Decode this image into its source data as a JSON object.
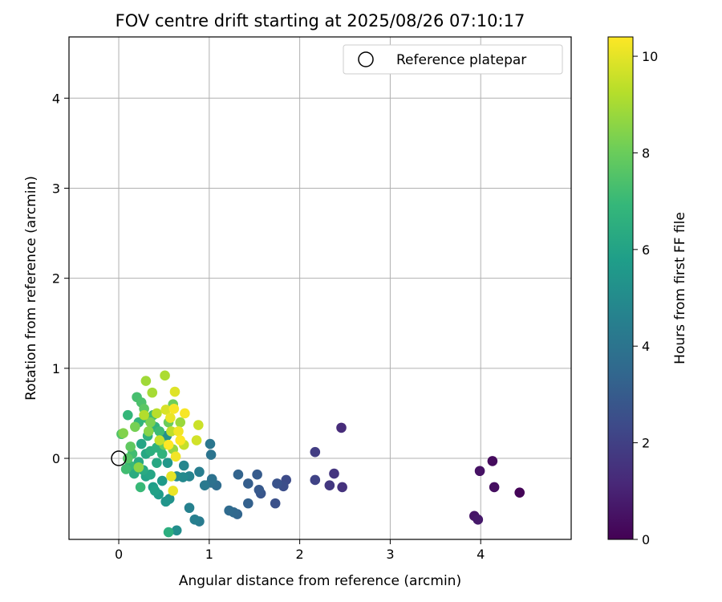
{
  "chart_data": {
    "type": "scatter",
    "title": "FOV centre drift starting at 2025/08/26 07:10:17",
    "xlabel": "Angular distance from reference (arcmin)",
    "ylabel": "Rotation from reference (arcmin)",
    "xlim": [
      -0.55,
      5.0
    ],
    "ylim": [
      -0.9,
      4.68
    ],
    "xticks": [
      0,
      1,
      2,
      3,
      4
    ],
    "yticks": [
      0,
      1,
      2,
      3,
      4
    ],
    "grid": true,
    "legend": {
      "placement": "top-right",
      "entries": [
        "Reference platepar"
      ]
    },
    "reference_point": {
      "x": 0,
      "y": 0,
      "label": "Reference platepar"
    },
    "colorbar": {
      "label": "Hours from first FF file",
      "min": 0,
      "max": 10.4,
      "ticks": [
        0,
        2,
        4,
        6,
        8,
        10
      ],
      "colormap": [
        "#440154",
        "#482878",
        "#3e4989",
        "#31688e",
        "#26828e",
        "#1f9e89",
        "#35b779",
        "#6ece58",
        "#b5de2b",
        "#fde725"
      ]
    },
    "points": [
      {
        "x": 4.43,
        "y": -0.38,
        "h": 0.1
      },
      {
        "x": 4.13,
        "y": -0.03,
        "h": 0.3
      },
      {
        "x": 4.15,
        "y": -0.32,
        "h": 0.4
      },
      {
        "x": 3.99,
        "y": -0.14,
        "h": 0.5
      },
      {
        "x": 3.93,
        "y": -0.64,
        "h": 0.6
      },
      {
        "x": 3.97,
        "y": -0.68,
        "h": 0.7
      },
      {
        "x": 2.46,
        "y": 0.34,
        "h": 1.3
      },
      {
        "x": 2.47,
        "y": -0.32,
        "h": 1.5
      },
      {
        "x": 2.38,
        "y": -0.17,
        "h": 1.6
      },
      {
        "x": 2.33,
        "y": -0.3,
        "h": 1.7
      },
      {
        "x": 2.17,
        "y": 0.07,
        "h": 1.9
      },
      {
        "x": 2.17,
        "y": -0.24,
        "h": 2.1
      },
      {
        "x": 1.85,
        "y": -0.24,
        "h": 2.4
      },
      {
        "x": 1.82,
        "y": -0.31,
        "h": 2.5
      },
      {
        "x": 1.73,
        "y": -0.5,
        "h": 2.6
      },
      {
        "x": 1.75,
        "y": -0.28,
        "h": 2.7
      },
      {
        "x": 1.57,
        "y": -0.39,
        "h": 2.8
      },
      {
        "x": 1.55,
        "y": -0.35,
        "h": 2.9
      },
      {
        "x": 1.53,
        "y": -0.18,
        "h": 3.0
      },
      {
        "x": 1.43,
        "y": -0.28,
        "h": 3.1
      },
      {
        "x": 1.43,
        "y": -0.5,
        "h": 3.2
      },
      {
        "x": 1.32,
        "y": -0.18,
        "h": 3.3
      },
      {
        "x": 1.31,
        "y": -0.62,
        "h": 3.4
      },
      {
        "x": 1.27,
        "y": -0.6,
        "h": 3.5
      },
      {
        "x": 1.22,
        "y": -0.58,
        "h": 3.6
      },
      {
        "x": 1.08,
        "y": -0.3,
        "h": 3.7
      },
      {
        "x": 1.02,
        "y": -0.27,
        "h": 3.8
      },
      {
        "x": 1.03,
        "y": -0.23,
        "h": 3.9
      },
      {
        "x": 1.02,
        "y": 0.04,
        "h": 4.0
      },
      {
        "x": 1.01,
        "y": 0.16,
        "h": 4.1
      },
      {
        "x": 0.95,
        "y": -0.3,
        "h": 4.2
      },
      {
        "x": 0.89,
        "y": -0.7,
        "h": 4.3
      },
      {
        "x": 0.89,
        "y": -0.15,
        "h": 4.4
      },
      {
        "x": 0.84,
        "y": -0.68,
        "h": 4.5
      },
      {
        "x": 0.78,
        "y": -0.55,
        "h": 4.6
      },
      {
        "x": 0.78,
        "y": -0.2,
        "h": 4.7
      },
      {
        "x": 0.72,
        "y": -0.08,
        "h": 4.8
      },
      {
        "x": 0.71,
        "y": -0.21,
        "h": 4.9
      },
      {
        "x": 0.64,
        "y": -0.2,
        "h": 5.0
      },
      {
        "x": 0.64,
        "y": -0.8,
        "h": 5.1
      },
      {
        "x": 0.53,
        "y": 0.25,
        "h": 5.2
      },
      {
        "x": 0.56,
        "y": -0.45,
        "h": 5.3
      },
      {
        "x": 0.52,
        "y": -0.48,
        "h": 5.4
      },
      {
        "x": 0.54,
        "y": -0.05,
        "h": 5.5
      },
      {
        "x": 0.48,
        "y": -0.25,
        "h": 5.6
      },
      {
        "x": 0.44,
        "y": -0.4,
        "h": 5.7
      },
      {
        "x": 0.38,
        "y": -0.32,
        "h": 5.8
      },
      {
        "x": 0.4,
        "y": -0.36,
        "h": 5.9
      },
      {
        "x": 0.3,
        "y": -0.2,
        "h": 6.0
      },
      {
        "x": 0.25,
        "y": 0.16,
        "h": 6.1
      },
      {
        "x": 0.35,
        "y": -0.18,
        "h": 6.1
      },
      {
        "x": 0.42,
        "y": -0.05,
        "h": 6.2
      },
      {
        "x": 0.3,
        "y": 0.05,
        "h": 6.2
      },
      {
        "x": 0.22,
        "y": -0.04,
        "h": 6.3
      },
      {
        "x": 0.27,
        "y": -0.13,
        "h": 6.3
      },
      {
        "x": 0.17,
        "y": -0.17,
        "h": 6.4
      },
      {
        "x": 0.2,
        "y": -0.08,
        "h": 6.4
      },
      {
        "x": 0.35,
        "y": 0.08,
        "h": 6.5
      },
      {
        "x": 0.55,
        "y": -0.82,
        "h": 6.5
      },
      {
        "x": 0.32,
        "y": 0.25,
        "h": 6.6
      },
      {
        "x": 0.42,
        "y": 0.12,
        "h": 6.6
      },
      {
        "x": 0.48,
        "y": 0.05,
        "h": 6.7
      },
      {
        "x": 0.4,
        "y": 0.35,
        "h": 6.7
      },
      {
        "x": 0.3,
        "y": 0.45,
        "h": 6.8
      },
      {
        "x": 0.22,
        "y": 0.4,
        "h": 6.8
      },
      {
        "x": 0.1,
        "y": 0.48,
        "h": 6.9
      },
      {
        "x": 0.24,
        "y": -0.32,
        "h": 7.0
      },
      {
        "x": 0.12,
        "y": -0.08,
        "h": 7.0
      },
      {
        "x": 0.38,
        "y": 0.48,
        "h": 7.1
      },
      {
        "x": 0.45,
        "y": 0.3,
        "h": 7.1
      },
      {
        "x": 0.08,
        "y": -0.12,
        "h": 7.2
      },
      {
        "x": 0.15,
        "y": 0.05,
        "h": 7.2
      },
      {
        "x": 0.2,
        "y": 0.68,
        "h": 7.3
      },
      {
        "x": 0.25,
        "y": 0.62,
        "h": 7.4
      },
      {
        "x": 0.03,
        "y": 0.27,
        "h": 7.5
      },
      {
        "x": 0.1,
        "y": 0.0,
        "h": 7.6
      },
      {
        "x": 0.28,
        "y": 0.55,
        "h": 7.7
      },
      {
        "x": 0.13,
        "y": 0.13,
        "h": 7.8
      },
      {
        "x": 0.5,
        "y": 0.15,
        "h": 7.9
      },
      {
        "x": 0.55,
        "y": 0.4,
        "h": 8.0
      },
      {
        "x": 0.6,
        "y": 0.6,
        "h": 8.1
      },
      {
        "x": 0.18,
        "y": 0.35,
        "h": 8.2
      },
      {
        "x": 0.35,
        "y": 0.4,
        "h": 8.3
      },
      {
        "x": 0.05,
        "y": 0.28,
        "h": 8.4
      },
      {
        "x": 0.33,
        "y": 0.3,
        "h": 8.5
      },
      {
        "x": 0.22,
        "y": -0.1,
        "h": 8.6
      },
      {
        "x": 0.6,
        "y": 0.1,
        "h": 8.7
      },
      {
        "x": 0.68,
        "y": 0.4,
        "h": 8.8
      },
      {
        "x": 0.3,
        "y": 0.86,
        "h": 8.9
      },
      {
        "x": 0.37,
        "y": 0.73,
        "h": 9.0
      },
      {
        "x": 0.51,
        "y": 0.92,
        "h": 9.1
      },
      {
        "x": 0.28,
        "y": 0.48,
        "h": 9.2
      },
      {
        "x": 0.42,
        "y": 0.5,
        "h": 9.3
      },
      {
        "x": 0.58,
        "y": 0.3,
        "h": 9.4
      },
      {
        "x": 0.72,
        "y": 0.15,
        "h": 9.5
      },
      {
        "x": 0.45,
        "y": 0.2,
        "h": 9.5
      },
      {
        "x": 0.88,
        "y": 0.37,
        "h": 9.6
      },
      {
        "x": 0.86,
        "y": 0.2,
        "h": 9.7
      },
      {
        "x": 0.52,
        "y": 0.54,
        "h": 9.8
      },
      {
        "x": 0.62,
        "y": 0.74,
        "h": 9.9
      },
      {
        "x": 0.58,
        "y": -0.2,
        "h": 10.0
      },
      {
        "x": 0.6,
        "y": -0.36,
        "h": 10.1
      },
      {
        "x": 0.57,
        "y": 0.45,
        "h": 10.1
      },
      {
        "x": 0.63,
        "y": 0.02,
        "h": 10.2
      },
      {
        "x": 0.66,
        "y": 0.3,
        "h": 10.2
      },
      {
        "x": 0.73,
        "y": 0.5,
        "h": 10.3
      },
      {
        "x": 0.61,
        "y": 0.55,
        "h": 10.3
      },
      {
        "x": 0.55,
        "y": 0.15,
        "h": 10.4
      },
      {
        "x": 0.68,
        "y": 0.2,
        "h": 10.4
      }
    ]
  }
}
